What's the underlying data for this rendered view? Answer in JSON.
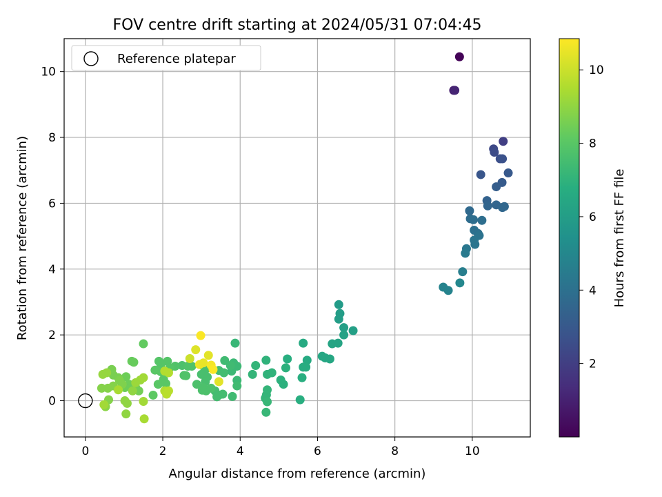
{
  "chart_data": {
    "type": "scatter",
    "title": "FOV centre drift starting at 2024/05/31 07:04:45",
    "xlabel": "Angular distance from reference (arcmin)",
    "ylabel": "Rotation from reference (arcmin)",
    "colorbar_label": "Hours from first FF file",
    "xlim": [
      -0.55,
      11.5
    ],
    "ylim": [
      -1.1,
      11.0
    ],
    "xticks": [
      0,
      2,
      4,
      6,
      8,
      10
    ],
    "yticks": [
      0,
      2,
      4,
      6,
      8,
      10
    ],
    "colorbar_range": [
      0.0,
      10.85
    ],
    "colorbar_ticks": [
      2,
      4,
      6,
      8,
      10
    ],
    "colormap": "viridis",
    "grid": true,
    "legend": {
      "position": "top-left",
      "entries": [
        "Reference platepar"
      ]
    },
    "reference_point": {
      "x": 0,
      "y": 0,
      "label": "Reference platepar"
    },
    "series": [
      {
        "points": [
          [
            9.67,
            10.45,
            0.1
          ],
          [
            9.52,
            9.43,
            0.9
          ],
          [
            9.55,
            9.43,
            1.1
          ],
          [
            10.8,
            7.88,
            2.0
          ],
          [
            10.55,
            7.65,
            2.4
          ],
          [
            10.57,
            7.55,
            2.5
          ],
          [
            10.72,
            7.35,
            2.6
          ],
          [
            10.78,
            7.35,
            2.7
          ],
          [
            10.22,
            6.87,
            2.9
          ],
          [
            10.93,
            6.92,
            3.0
          ],
          [
            10.77,
            6.63,
            3.1
          ],
          [
            10.62,
            6.5,
            3.2
          ],
          [
            10.38,
            6.08,
            3.4
          ],
          [
            10.4,
            5.92,
            3.5
          ],
          [
            10.62,
            5.95,
            3.5
          ],
          [
            10.78,
            5.87,
            3.6
          ],
          [
            10.83,
            5.9,
            3.6
          ],
          [
            9.93,
            5.77,
            3.7
          ],
          [
            9.95,
            5.53,
            3.8
          ],
          [
            10.03,
            5.5,
            3.9
          ],
          [
            10.25,
            5.48,
            3.9
          ],
          [
            10.05,
            5.18,
            4.0
          ],
          [
            10.15,
            5.08,
            4.0
          ],
          [
            10.18,
            5.02,
            4.1
          ],
          [
            10.05,
            4.88,
            4.2
          ],
          [
            10.07,
            4.75,
            4.2
          ],
          [
            9.85,
            4.62,
            4.3
          ],
          [
            9.82,
            4.48,
            4.4
          ],
          [
            9.75,
            3.92,
            4.6
          ],
          [
            9.68,
            3.58,
            5.0
          ],
          [
            9.25,
            3.45,
            4.8
          ],
          [
            9.38,
            3.35,
            4.8
          ],
          [
            6.55,
            2.92,
            5.9
          ],
          [
            6.58,
            2.65,
            6.0
          ],
          [
            6.55,
            2.48,
            6.0
          ],
          [
            6.68,
            2.22,
            6.1
          ],
          [
            6.92,
            2.13,
            6.1
          ],
          [
            6.68,
            2.0,
            6.2
          ],
          [
            6.38,
            1.73,
            6.3
          ],
          [
            6.53,
            1.75,
            6.3
          ],
          [
            6.12,
            1.35,
            6.4
          ],
          [
            6.2,
            1.3,
            6.4
          ],
          [
            6.32,
            1.27,
            6.4
          ],
          [
            5.63,
            1.75,
            6.6
          ],
          [
            5.73,
            1.23,
            6.6
          ],
          [
            5.7,
            1.02,
            6.7
          ],
          [
            5.63,
            1.02,
            6.7
          ],
          [
            5.6,
            0.7,
            6.8
          ],
          [
            5.55,
            0.03,
            6.8
          ],
          [
            5.22,
            1.27,
            6.8
          ],
          [
            5.18,
            1.0,
            6.9
          ],
          [
            5.05,
            0.63,
            6.9
          ],
          [
            5.12,
            0.5,
            6.9
          ],
          [
            4.67,
            1.23,
            7.0
          ],
          [
            4.82,
            0.85,
            7.0
          ],
          [
            4.7,
            0.8,
            7.0
          ],
          [
            4.4,
            1.07,
            7.1
          ],
          [
            4.32,
            0.8,
            7.1
          ],
          [
            4.7,
            0.33,
            7.1
          ],
          [
            4.68,
            0.18,
            7.1
          ],
          [
            4.65,
            0.08,
            7.1
          ],
          [
            4.7,
            -0.03,
            7.2
          ],
          [
            4.67,
            -0.35,
            7.2
          ],
          [
            3.87,
            1.75,
            7.2
          ],
          [
            3.83,
            1.15,
            7.3
          ],
          [
            3.92,
            1.05,
            7.3
          ],
          [
            3.78,
            0.9,
            7.3
          ],
          [
            3.92,
            0.62,
            7.3
          ],
          [
            3.92,
            0.45,
            7.4
          ],
          [
            3.8,
            0.13,
            7.4
          ],
          [
            3.6,
            1.22,
            7.4
          ],
          [
            3.75,
            1.07,
            7.4
          ],
          [
            3.45,
            0.92,
            7.5
          ],
          [
            3.58,
            0.85,
            7.5
          ],
          [
            3.35,
            0.3,
            7.5
          ],
          [
            3.45,
            0.17,
            7.5
          ],
          [
            3.4,
            0.12,
            7.5
          ],
          [
            3.55,
            0.2,
            7.5
          ],
          [
            3.05,
            1.05,
            7.6
          ],
          [
            3.12,
            0.97,
            7.6
          ],
          [
            3.0,
            0.8,
            7.6
          ],
          [
            3.15,
            0.72,
            7.6
          ],
          [
            3.1,
            0.58,
            7.6
          ],
          [
            2.88,
            0.5,
            7.7
          ],
          [
            3.05,
            0.4,
            7.7
          ],
          [
            3.12,
            0.3,
            7.7
          ],
          [
            3.25,
            0.38,
            7.7
          ],
          [
            3.02,
            0.32,
            7.7
          ],
          [
            2.5,
            1.07,
            7.7
          ],
          [
            2.65,
            1.05,
            7.8
          ],
          [
            2.75,
            1.05,
            7.8
          ],
          [
            2.55,
            0.77,
            7.8
          ],
          [
            2.6,
            0.76,
            7.8
          ],
          [
            2.32,
            1.05,
            7.8
          ],
          [
            2.12,
            1.2,
            7.9
          ],
          [
            2.18,
            1.0,
            7.9
          ],
          [
            1.95,
            1.1,
            7.9
          ],
          [
            1.9,
            1.2,
            7.9
          ],
          [
            1.8,
            0.93,
            8.0
          ],
          [
            1.95,
            0.88,
            8.0
          ],
          [
            2.02,
            0.65,
            8.0
          ],
          [
            1.88,
            0.5,
            8.0
          ],
          [
            2.08,
            0.52,
            8.0
          ],
          [
            1.75,
            0.17,
            8.1
          ],
          [
            1.5,
            1.73,
            8.2
          ],
          [
            1.25,
            1.17,
            8.3
          ],
          [
            1.2,
            1.2,
            8.3
          ],
          [
            1.05,
            0.73,
            8.4
          ],
          [
            1.13,
            0.5,
            8.4
          ],
          [
            1.02,
            0.4,
            8.4
          ],
          [
            1.3,
            0.4,
            8.5
          ],
          [
            1.38,
            0.3,
            8.5
          ],
          [
            0.68,
            0.95,
            8.6
          ],
          [
            0.72,
            0.78,
            8.6
          ],
          [
            0.85,
            0.7,
            8.6
          ],
          [
            0.88,
            0.62,
            8.7
          ],
          [
            0.95,
            0.5,
            8.7
          ],
          [
            0.72,
            0.45,
            8.8
          ],
          [
            0.58,
            0.38,
            8.8
          ],
          [
            0.42,
            0.38,
            8.8
          ],
          [
            0.6,
            0.03,
            8.8
          ],
          [
            0.52,
            -0.18,
            8.9
          ],
          [
            1.22,
            0.3,
            9.0
          ],
          [
            1.02,
            0.0,
            9.0
          ],
          [
            1.08,
            -0.08,
            9.0
          ],
          [
            1.05,
            -0.4,
            9.0
          ],
          [
            0.45,
            0.8,
            9.1
          ],
          [
            0.55,
            0.85,
            9.1
          ],
          [
            1.3,
            0.55,
            9.2
          ],
          [
            1.42,
            0.63,
            9.2
          ],
          [
            1.5,
            0.7,
            9.3
          ],
          [
            1.5,
            -0.02,
            9.3
          ],
          [
            1.52,
            -0.55,
            9.4
          ],
          [
            0.48,
            -0.12,
            9.3
          ],
          [
            0.85,
            0.33,
            9.4
          ],
          [
            2.05,
            0.9,
            9.6
          ],
          [
            2.15,
            0.85,
            9.6
          ],
          [
            2.05,
            0.3,
            9.6
          ],
          [
            2.15,
            0.3,
            9.7
          ],
          [
            2.1,
            0.2,
            9.7
          ],
          [
            2.7,
            1.28,
            10.0
          ],
          [
            2.85,
            1.55,
            10.3
          ],
          [
            2.98,
            1.98,
            10.8
          ],
          [
            2.95,
            1.1,
            10.6
          ],
          [
            3.05,
            1.15,
            10.5
          ],
          [
            3.18,
            1.38,
            10.4
          ],
          [
            3.25,
            1.08,
            10.7
          ],
          [
            3.3,
            0.95,
            10.8
          ],
          [
            3.45,
            0.58,
            10.4
          ]
        ]
      }
    ]
  }
}
